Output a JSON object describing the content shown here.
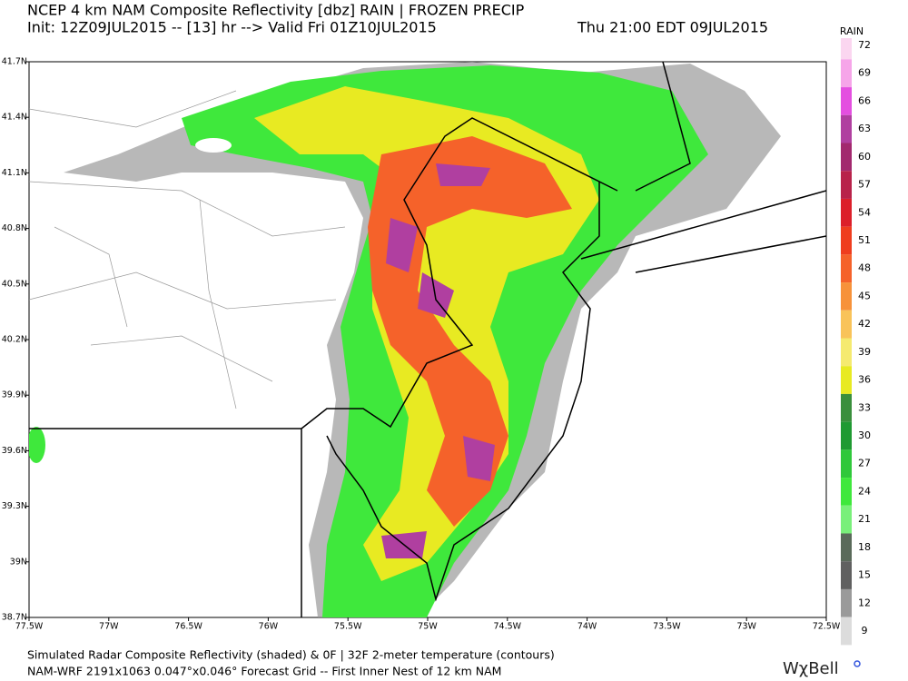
{
  "header": {
    "line1": "NCEP 4 km NAM Composite Reflectivity [dbz]  RAIN | FROZEN PRECIP",
    "line2": "Init: 12Z09JUL2015 -- [13] hr --> Valid Fri 01Z10JUL2015",
    "valid_local": "Thu 21:00 EDT 09JUL2015"
  },
  "map": {
    "lon_labels": [
      "77.5W",
      "77W",
      "76.5W",
      "76W",
      "75.5W",
      "75W",
      "74.5W",
      "74W",
      "73.5W",
      "73W",
      "72.5W"
    ],
    "lat_labels": [
      "41.7N",
      "41.4N",
      "41.1N",
      "40.8N",
      "40.5N",
      "40.2N",
      "39.9N",
      "39.6N",
      "39.3N",
      "39N",
      "38.7N"
    ]
  },
  "colorbar": {
    "title": "RAIN",
    "levels": [
      72,
      69,
      66,
      63,
      60,
      57,
      54,
      51,
      48,
      45,
      42,
      39,
      36,
      33,
      30,
      27,
      24,
      21,
      18,
      15,
      12,
      9
    ],
    "colors": [
      "#fbd6f0",
      "#f6a5e9",
      "#e44fe0",
      "#b03fa0",
      "#a2286e",
      "#b8224a",
      "#dc1f2a",
      "#ef3d1e",
      "#f5622a",
      "#f7923a",
      "#f9c35a",
      "#f5ea70",
      "#e8ea22",
      "#3a8f3c",
      "#1f9a32",
      "#2fc83a",
      "#3fe83c",
      "#79f07a",
      "#5a6a5a",
      "#606060",
      "#9a9a9a",
      "#dcdcdc"
    ]
  },
  "footer": {
    "line1": "Simulated Radar Composite Reflectivity (shaded) & 0F | 32F 2-meter temperature (contours)",
    "line2": "NAM-WRF 2191x1063 0.047°x0.046° Forecast Grid -- First Inner Nest of 12 km NAM",
    "logo": "WχBell"
  }
}
